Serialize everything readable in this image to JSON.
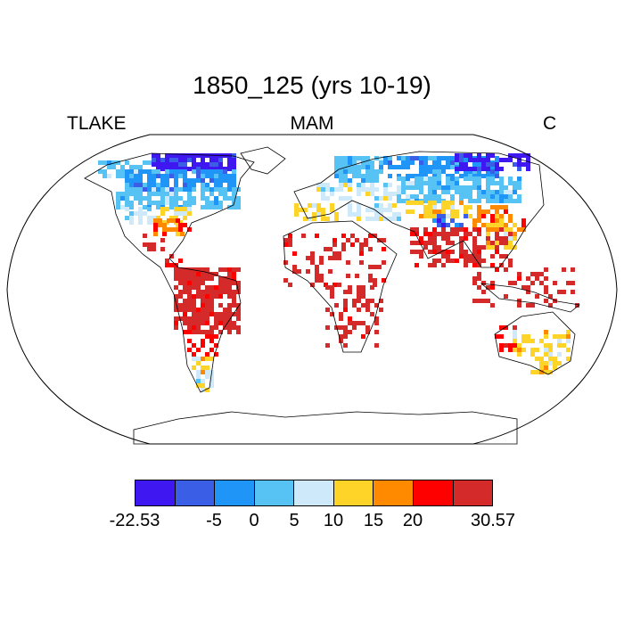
{
  "header": {
    "title": "1850_125 (yrs 10-19)",
    "variable": "TLAKE",
    "season": "MAM",
    "units": "C"
  },
  "map": {
    "projection": "robinson",
    "land_fill": "#ffffff",
    "coastline_color": "#000000"
  },
  "colorbar": {
    "colors": [
      "#3f17f0",
      "#3a5ee6",
      "#1f96f7",
      "#57c3f4",
      "#cde9fa",
      "#ffd428",
      "#ff8a00",
      "#ff0000",
      "#d42a2a"
    ],
    "labels": [
      "-22.53",
      "-5",
      "0",
      "5",
      "10",
      "15",
      "20",
      "30.57"
    ]
  }
}
